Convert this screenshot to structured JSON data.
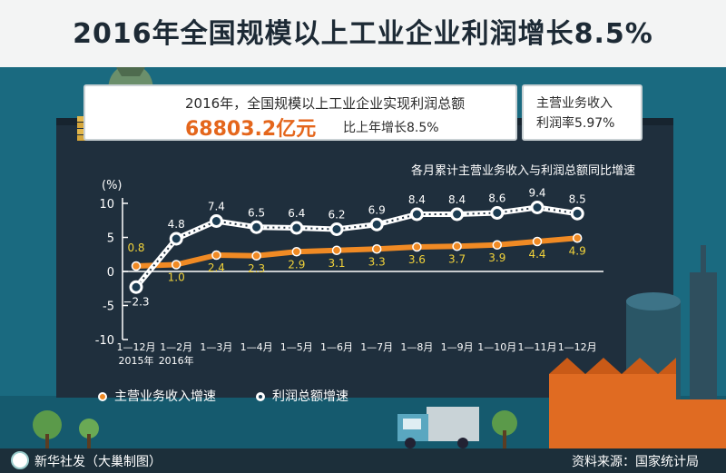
{
  "header": {
    "title": "2016年全国规模以上工业企业利润增长8.5%"
  },
  "summary": {
    "line1": "2016年，全国规模以上工业企业实现利润总额",
    "big_value": "68803.2亿元",
    "line2": "比上年增长8.5%",
    "side_line1": "主营业务收入",
    "side_line2": "利润率5.97%"
  },
  "footer": {
    "left": "新华社发（大巢制图）",
    "right": "资料来源：国家统计局"
  },
  "colors": {
    "revenue": "#f08a24",
    "profit": "#1c3c52",
    "background": "#1f2f3d",
    "accent": "#e4661c"
  },
  "chart_data": {
    "type": "line",
    "title": "各月累计主营业务收入与利润总额同比增速",
    "ylabel": "(%)",
    "ylim": [
      -10,
      10
    ],
    "yticks": [
      -10,
      -5,
      0,
      5,
      10
    ],
    "categories": [
      "1—12月\n2015年",
      "1—2月\n2016年",
      "1—3月",
      "1—4月",
      "1—5月",
      "1—6月",
      "1—7月",
      "1—8月",
      "1—9月",
      "1—10月",
      "1—11月",
      "1—12月"
    ],
    "series": [
      {
        "name": "主营业务收入增速",
        "values": [
          0.8,
          1.0,
          2.4,
          2.3,
          2.9,
          3.1,
          3.3,
          3.6,
          3.7,
          3.9,
          4.4,
          4.9
        ],
        "labels": [
          "0.8",
          "1.0",
          "2.4",
          "2.3",
          "2.9",
          "3.1",
          "3.3",
          "3.6",
          "3.7",
          "3.9",
          "4.4",
          "4.9"
        ]
      },
      {
        "name": "利润总额增速",
        "values": [
          -2.3,
          4.8,
          7.4,
          6.5,
          6.4,
          6.2,
          6.9,
          8.4,
          8.4,
          8.6,
          9.4,
          8.5
        ],
        "labels": [
          "−2.3",
          "4.8",
          "7.4",
          "6.5",
          "6.4",
          "6.2",
          "6.9",
          "8.4",
          "8.4",
          "8.6",
          "9.4",
          "8.5"
        ]
      }
    ],
    "grid": false,
    "legend": "bottom-left"
  }
}
